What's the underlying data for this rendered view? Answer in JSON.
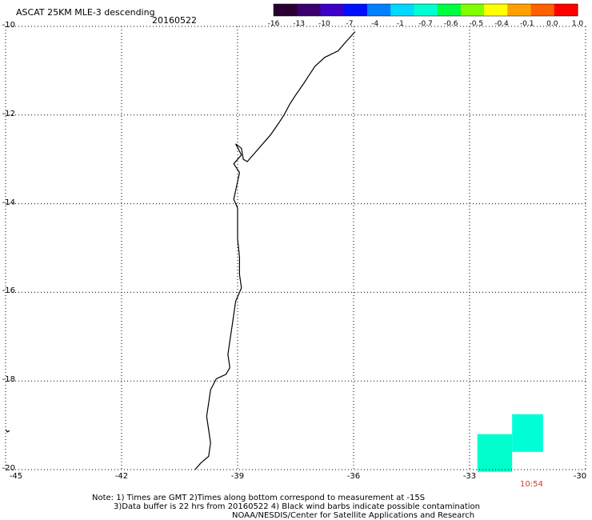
{
  "title": "ASCAT 25KM MLE-3 descending",
  "date": "20160522",
  "colorbar": {
    "ticks": [
      "-16",
      "-13",
      "-10",
      "-7",
      "-4",
      "-1",
      "-0.7",
      "-0.6",
      "-0.5",
      "-0.4",
      "-0.1",
      "0.0",
      "1.0"
    ],
    "colors": [
      "#2a0033",
      "#3a006e",
      "#3c00c8",
      "#0010ff",
      "#0080ff",
      "#00d8ff",
      "#00ffd0",
      "#00ff40",
      "#80ff00",
      "#ffff00",
      "#ffa000",
      "#ff6000",
      "#ff0000"
    ]
  },
  "map": {
    "lat_ticks": [
      "-10",
      "-12",
      "-14",
      "-16",
      "-18",
      "-20"
    ],
    "lon_ticks": [
      "-45",
      "-42",
      "-39",
      "-36",
      "-33",
      "-30"
    ],
    "lat_range": [
      -20,
      -10
    ],
    "lon_range": [
      -45,
      -30
    ],
    "grid": "dotted"
  },
  "time_label": "10:54",
  "notes": {
    "line1": "Note: 1) Times are GMT 2)Times along bottom correspond to measurement at -15S",
    "line2": "3)Data buffer is 22 hrs from 20160522 4) Black wind barbs indicate possible contamination",
    "line3": "NOAA/NESDIS/Center for Satellite Applications and Research"
  },
  "data_cells": {
    "color": "#00ffd8",
    "secondary_color": "#00ffcc",
    "cells": [
      {
        "lon_min": -31.9,
        "lon_max": -31.1,
        "lat_min": -19.6,
        "lat_max": -18.75
      },
      {
        "lon_min": -32.8,
        "lon_max": -31.9,
        "lat_min": -20.05,
        "lat_max": -19.2
      }
    ]
  },
  "coastline": [
    [
      -35.96,
      -10.12
    ],
    [
      -36.2,
      -10.35
    ],
    [
      -36.4,
      -10.55
    ],
    [
      -36.75,
      -10.7
    ],
    [
      -37.0,
      -10.9
    ],
    [
      -37.15,
      -11.1
    ],
    [
      -37.3,
      -11.3
    ],
    [
      -37.5,
      -11.55
    ],
    [
      -37.65,
      -11.75
    ],
    [
      -37.8,
      -12.0
    ],
    [
      -37.95,
      -12.2
    ],
    [
      -38.15,
      -12.45
    ],
    [
      -38.35,
      -12.65
    ],
    [
      -38.55,
      -12.85
    ],
    [
      -38.75,
      -13.05
    ],
    [
      -38.85,
      -13.0
    ],
    [
      -38.9,
      -12.75
    ],
    [
      -39.05,
      -12.65
    ],
    [
      -38.9,
      -12.9
    ],
    [
      -39.1,
      -13.1
    ],
    [
      -38.95,
      -13.3
    ],
    [
      -39.0,
      -13.5
    ],
    [
      -39.05,
      -13.7
    ],
    [
      -39.1,
      -13.9
    ],
    [
      -39.0,
      -14.1
    ],
    [
      -39.0,
      -14.4
    ],
    [
      -39.0,
      -14.8
    ],
    [
      -38.95,
      -15.2
    ],
    [
      -38.95,
      -15.6
    ],
    [
      -38.9,
      -15.9
    ],
    [
      -39.05,
      -16.2
    ],
    [
      -39.1,
      -16.5
    ],
    [
      -39.15,
      -16.8
    ],
    [
      -39.2,
      -17.1
    ],
    [
      -39.25,
      -17.4
    ],
    [
      -39.2,
      -17.7
    ],
    [
      -39.3,
      -17.85
    ],
    [
      -39.55,
      -17.95
    ],
    [
      -39.7,
      -18.2
    ],
    [
      -39.75,
      -18.5
    ],
    [
      -39.8,
      -18.8
    ],
    [
      -39.75,
      -19.1
    ],
    [
      -39.7,
      -19.4
    ],
    [
      -39.75,
      -19.7
    ],
    [
      -39.95,
      -19.85
    ],
    [
      -40.1,
      -20.0
    ]
  ],
  "islands": [
    [
      [
        -45.0,
        -19.1
      ],
      [
        -44.95,
        -19.15
      ],
      [
        -44.9,
        -19.12
      ]
    ]
  ]
}
